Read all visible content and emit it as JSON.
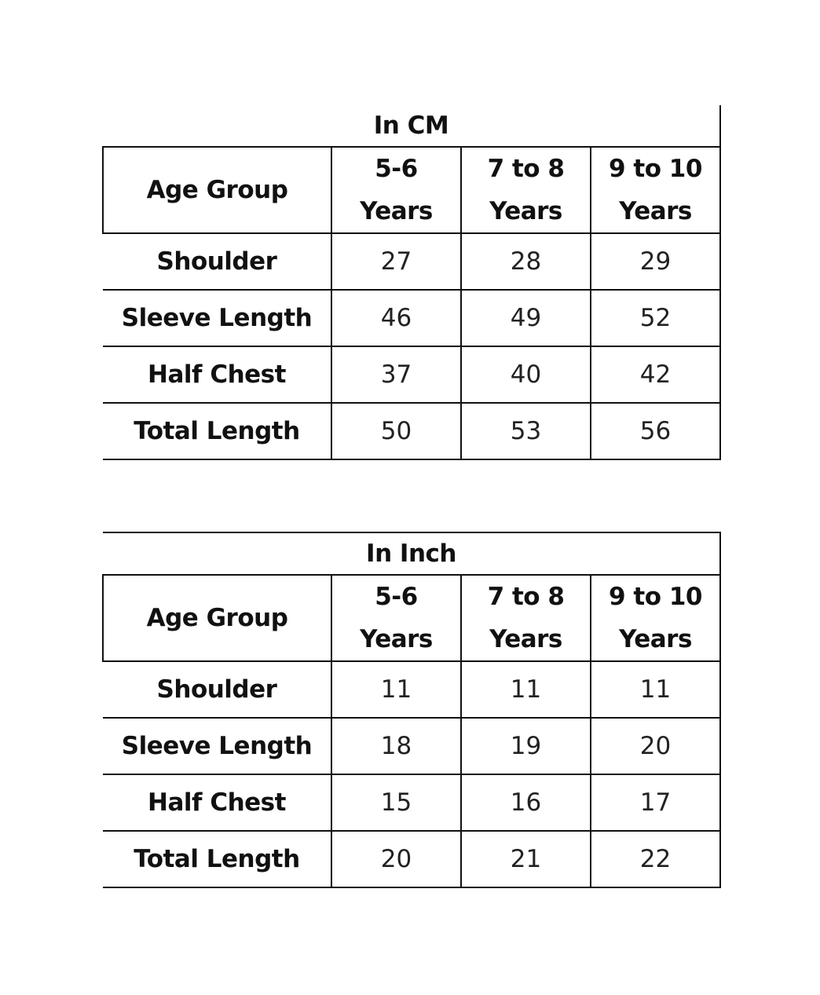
{
  "tables": [
    {
      "title": "In CM",
      "header": {
        "label": "Age Group",
        "columns": [
          {
            "line1": "5-6",
            "line2": "Years"
          },
          {
            "line1": "7 to 8",
            "line2": "Years"
          },
          {
            "line1": "9 to 10",
            "line2": "Years"
          }
        ]
      },
      "rows": [
        {
          "label": "Shoulder",
          "values": [
            "27",
            "28",
            "29"
          ]
        },
        {
          "label": "Sleeve Length",
          "values": [
            "46",
            "49",
            "52"
          ]
        },
        {
          "label": "Half Chest",
          "values": [
            "37",
            "40",
            "42"
          ]
        },
        {
          "label": "Total Length",
          "values": [
            "50",
            "53",
            "56"
          ]
        }
      ]
    },
    {
      "title": "In Inch",
      "header": {
        "label": "Age Group",
        "columns": [
          {
            "line1": "5-6",
            "line2": "Years"
          },
          {
            "line1": "7 to 8",
            "line2": "Years"
          },
          {
            "line1": "9 to 10",
            "line2": "Years"
          }
        ]
      },
      "rows": [
        {
          "label": "Shoulder",
          "values": [
            "11",
            "11",
            "11"
          ]
        },
        {
          "label": "Sleeve Length",
          "values": [
            "18",
            "19",
            "20"
          ]
        },
        {
          "label": "Half Chest",
          "values": [
            "15",
            "16",
            "17"
          ]
        },
        {
          "label": "Total Length",
          "values": [
            "20",
            "21",
            "22"
          ]
        }
      ]
    }
  ]
}
